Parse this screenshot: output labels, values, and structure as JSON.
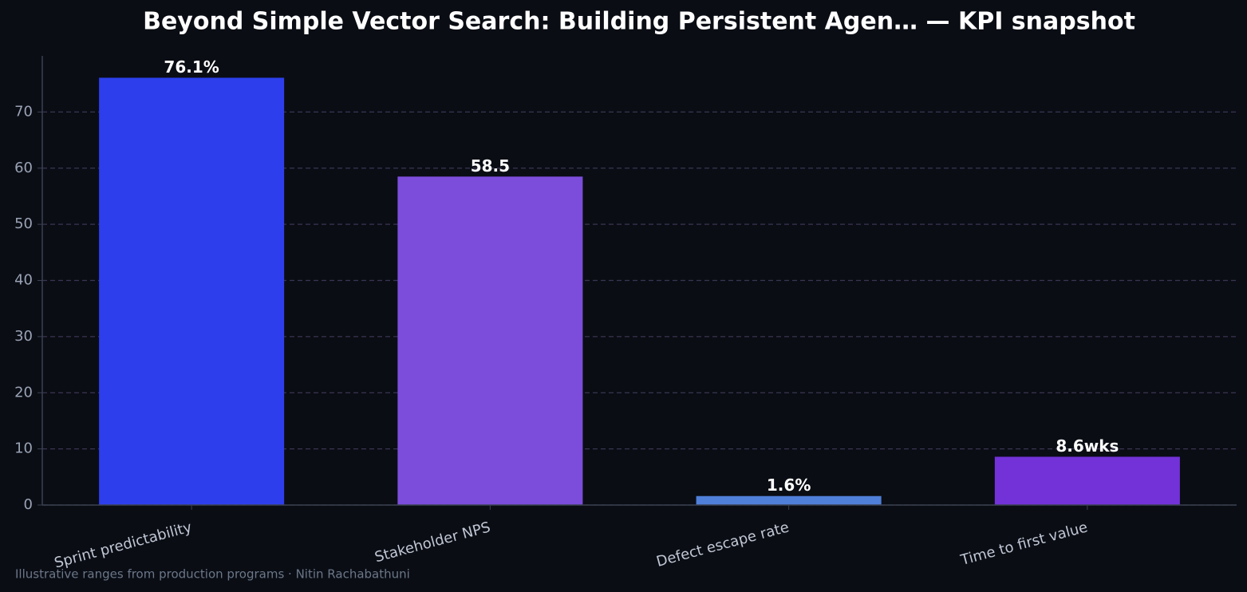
{
  "chart_data": {
    "type": "bar",
    "title": "Beyond Simple Vector Search: Building Persistent Agen… — KPI snapshot",
    "categories": [
      "Sprint predictability",
      "Stakeholder NPS",
      "Defect escape rate",
      "Time to first value"
    ],
    "values": [
      76.1,
      58.5,
      1.6,
      8.6
    ],
    "value_labels": [
      "76.1%",
      "58.5",
      "1.6%",
      "8.6wks"
    ],
    "colors": [
      "#2d3fec",
      "#7c4ddb",
      "#4f7fd9",
      "#7232d8"
    ],
    "ylim": [
      0,
      80
    ],
    "yticks": [
      0,
      10,
      20,
      30,
      40,
      50,
      60,
      70
    ],
    "grid": true,
    "footnote": "Illustrative ranges from production programs · Nitin Rachabathuni"
  }
}
